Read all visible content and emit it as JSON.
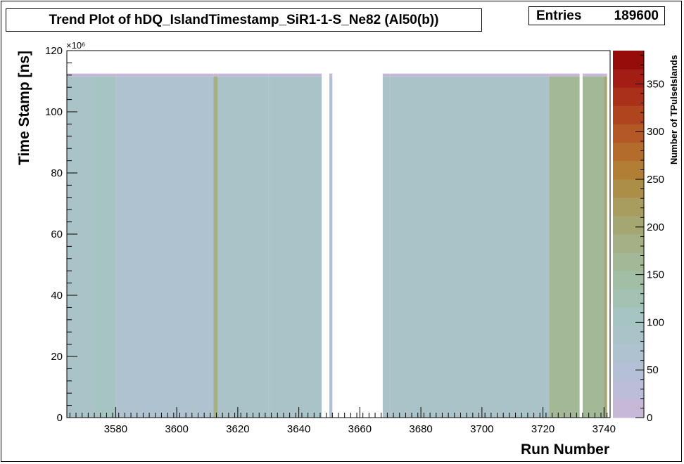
{
  "title": "Trend Plot of hDQ_IslandTimestamp_SiR1-1-S_Ne82 (Al50(b))",
  "stats": {
    "label": "Entries",
    "value": "189600"
  },
  "chart_data": {
    "type": "heatmap",
    "title": "Trend Plot of hDQ_IslandTimestamp_SiR1-1-S_Ne82 (Al50(b))",
    "xlabel": "Run Number",
    "ylabel": "Time Stamp [ns]",
    "zlabel": "Number of TPulseIslands",
    "y_exponent": "×10⁶",
    "xlim": [
      3564,
      3742
    ],
    "ylim": [
      0,
      120
    ],
    "zlim": [
      0,
      385
    ],
    "x_ticks": [
      "3580",
      "3600",
      "3620",
      "3640",
      "3660",
      "3680",
      "3700",
      "3720",
      "3740"
    ],
    "y_ticks": [
      "0",
      "20",
      "40",
      "60",
      "80",
      "100",
      "120"
    ],
    "z_ticks": [
      "0",
      "50",
      "100",
      "150",
      "200",
      "250",
      "300",
      "350"
    ],
    "y_fill_max": 112.5,
    "cell_z": 80,
    "run_bands": [
      {
        "x0": 3564,
        "x1": 3573,
        "z": 95
      },
      {
        "x0": 3573,
        "x1": 3580,
        "z": 105
      },
      {
        "x0": 3580,
        "x1": 3612,
        "z": 75
      },
      {
        "x0": 3612,
        "x1": 3613.5,
        "z": 185
      },
      {
        "x0": 3613.5,
        "x1": 3630,
        "z": 80
      },
      {
        "x0": 3630,
        "x1": 3631,
        "z": 115
      },
      {
        "x0": 3631,
        "x1": 3647.5,
        "z": 78
      },
      {
        "x0": 3650,
        "x1": 3651,
        "z": 55
      },
      {
        "x0": 3667.5,
        "x1": 3670,
        "z": 95
      },
      {
        "x0": 3670,
        "x1": 3722,
        "z": 82
      },
      {
        "x0": 3722,
        "x1": 3732,
        "z": 170
      },
      {
        "x0": 3733,
        "x1": 3740,
        "z": 165
      },
      {
        "x0": 3740,
        "x1": 3741,
        "z": 195
      }
    ],
    "palette": [
      "#c6b8d6",
      "#bcbdd8",
      "#b4c0d6",
      "#aec2d0",
      "#a9c3c9",
      "#a6c4c1",
      "#a3c2b4",
      "#a2bea4",
      "#a3b896",
      "#a5b086",
      "#a4a772",
      "#a89c5e",
      "#ac8e48",
      "#b27e36",
      "#b46c2c",
      "#b45826",
      "#b0441f",
      "#aa301a",
      "#a21e14",
      "#960c0a"
    ]
  }
}
